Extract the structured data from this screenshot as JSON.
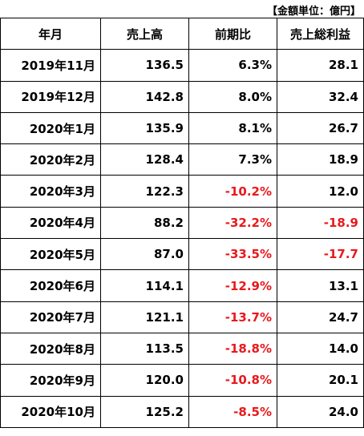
{
  "unit_note": "【金額単位：億円】",
  "headers": [
    "年月",
    "売上高",
    "前期比",
    "売上総利益"
  ],
  "rows": [
    {
      "month": "2019年11月",
      "sales": "136.5",
      "change": "6.3%",
      "gross_profit": "28.1"
    },
    {
      "month": "2019年12月",
      "sales": "142.8",
      "change": "8.0%",
      "gross_profit": "32.4"
    },
    {
      "month": "2020年1月",
      "sales": "135.9",
      "change": "8.1%",
      "gross_profit": "26.7"
    },
    {
      "month": "2020年2月",
      "sales": "128.4",
      "change": "7.3%",
      "gross_profit": "18.9"
    },
    {
      "month": "2020年3月",
      "sales": "122.3",
      "change": "-10.2%",
      "gross_profit": "12.0"
    },
    {
      "month": "2020年4月",
      "sales": "88.2",
      "change": "-32.2%",
      "gross_profit": "-18.9"
    },
    {
      "month": "2020年5月",
      "sales": "87.0",
      "change": "-33.5%",
      "gross_profit": "-17.7"
    },
    {
      "month": "2020年6月",
      "sales": "114.1",
      "change": "-12.9%",
      "gross_profit": "13.1"
    },
    {
      "month": "2020年7月",
      "sales": "121.1",
      "change": "-13.7%",
      "gross_profit": "24.7"
    },
    {
      "month": "2020年8月",
      "sales": "113.5",
      "change": "-18.8%",
      "gross_profit": "14.0"
    },
    {
      "month": "2020年9月",
      "sales": "120.0",
      "change": "-10.8%",
      "gross_profit": "20.1"
    },
    {
      "month": "2020年10月",
      "sales": "125.2",
      "change": "-8.5%",
      "gross_profit": "24.0"
    }
  ],
  "colors": {
    "negative": "#e8191d",
    "text": "#000000"
  }
}
